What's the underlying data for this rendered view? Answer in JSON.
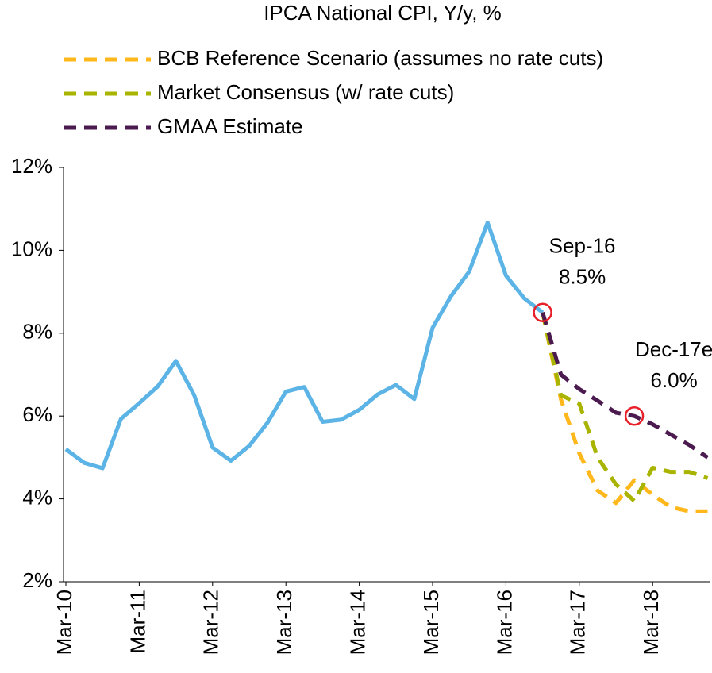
{
  "chart_data": {
    "type": "line",
    "title": "IPCA National CPI, Y/y, %",
    "categories": [
      "Mar-10",
      null,
      null,
      null,
      "Mar-11",
      null,
      null,
      null,
      "Mar-12",
      null,
      null,
      null,
      "Mar-13",
      null,
      null,
      null,
      "Mar-14",
      null,
      null,
      null,
      "Mar-15",
      null,
      null,
      null,
      "Mar-16",
      null,
      null,
      null,
      "Mar-17",
      null,
      null,
      null,
      "Mar-18",
      null,
      null,
      null
    ],
    "series": [
      {
        "color": "#5bb4e5",
        "dashed": false,
        "values": [
          5.2,
          4.87,
          4.74,
          5.93,
          6.31,
          6.71,
          7.33,
          6.5,
          5.24,
          4.92,
          5.28,
          5.84,
          6.59,
          6.7,
          5.86,
          5.91,
          6.15,
          6.52,
          6.75,
          6.41,
          8.13,
          8.89,
          9.49,
          10.67,
          9.39,
          8.84,
          8.5,
          null,
          null,
          null,
          null,
          null,
          null,
          null,
          null,
          null
        ]
      },
      {
        "name": "BCB Reference Scenario (assumes no rate cuts)",
        "color": "#ffb81c",
        "dashed": true,
        "values": [
          null,
          null,
          null,
          null,
          null,
          null,
          null,
          null,
          null,
          null,
          null,
          null,
          null,
          null,
          null,
          null,
          null,
          null,
          null,
          null,
          null,
          null,
          null,
          null,
          null,
          null,
          8.5,
          6.4,
          5.1,
          4.2,
          3.9,
          4.45,
          4.1,
          3.8,
          3.7,
          3.7
        ]
      },
      {
        "name": "Market Consensus (w/ rate cuts)",
        "color": "#a8b400",
        "dashed": true,
        "values": [
          null,
          null,
          null,
          null,
          null,
          null,
          null,
          null,
          null,
          null,
          null,
          null,
          null,
          null,
          null,
          null,
          null,
          null,
          null,
          null,
          null,
          null,
          null,
          null,
          null,
          null,
          8.5,
          6.5,
          6.3,
          5.0,
          4.35,
          3.95,
          4.75,
          4.65,
          4.65,
          4.5
        ]
      },
      {
        "name": "GMAA Estimate",
        "color": "#4b1a4f",
        "dashed": true,
        "values": [
          null,
          null,
          null,
          null,
          null,
          null,
          null,
          null,
          null,
          null,
          null,
          null,
          null,
          null,
          null,
          null,
          null,
          null,
          null,
          null,
          null,
          null,
          null,
          null,
          null,
          null,
          8.5,
          7.0,
          6.65,
          6.37,
          6.08,
          6.0,
          5.8,
          5.55,
          5.3,
          5.0
        ]
      }
    ],
    "annotations": [
      {
        "label": "Sep-16",
        "value": 8.5,
        "value_label": "8.5%",
        "color": "#e8202a"
      },
      {
        "label": "Dec-17e",
        "value": 6.0,
        "value_label": "6.0%",
        "color": "#e8202a"
      }
    ],
    "ylim": [
      2,
      12
    ],
    "yticks": [
      {
        "value": 2,
        "label": "2%"
      },
      {
        "value": 4,
        "label": "4%"
      },
      {
        "value": 6,
        "label": "6%"
      },
      {
        "value": 8,
        "label": "8%"
      },
      {
        "value": 10,
        "label": "10%"
      },
      {
        "value": 12,
        "label": "12%"
      }
    ],
    "grid": false
  }
}
